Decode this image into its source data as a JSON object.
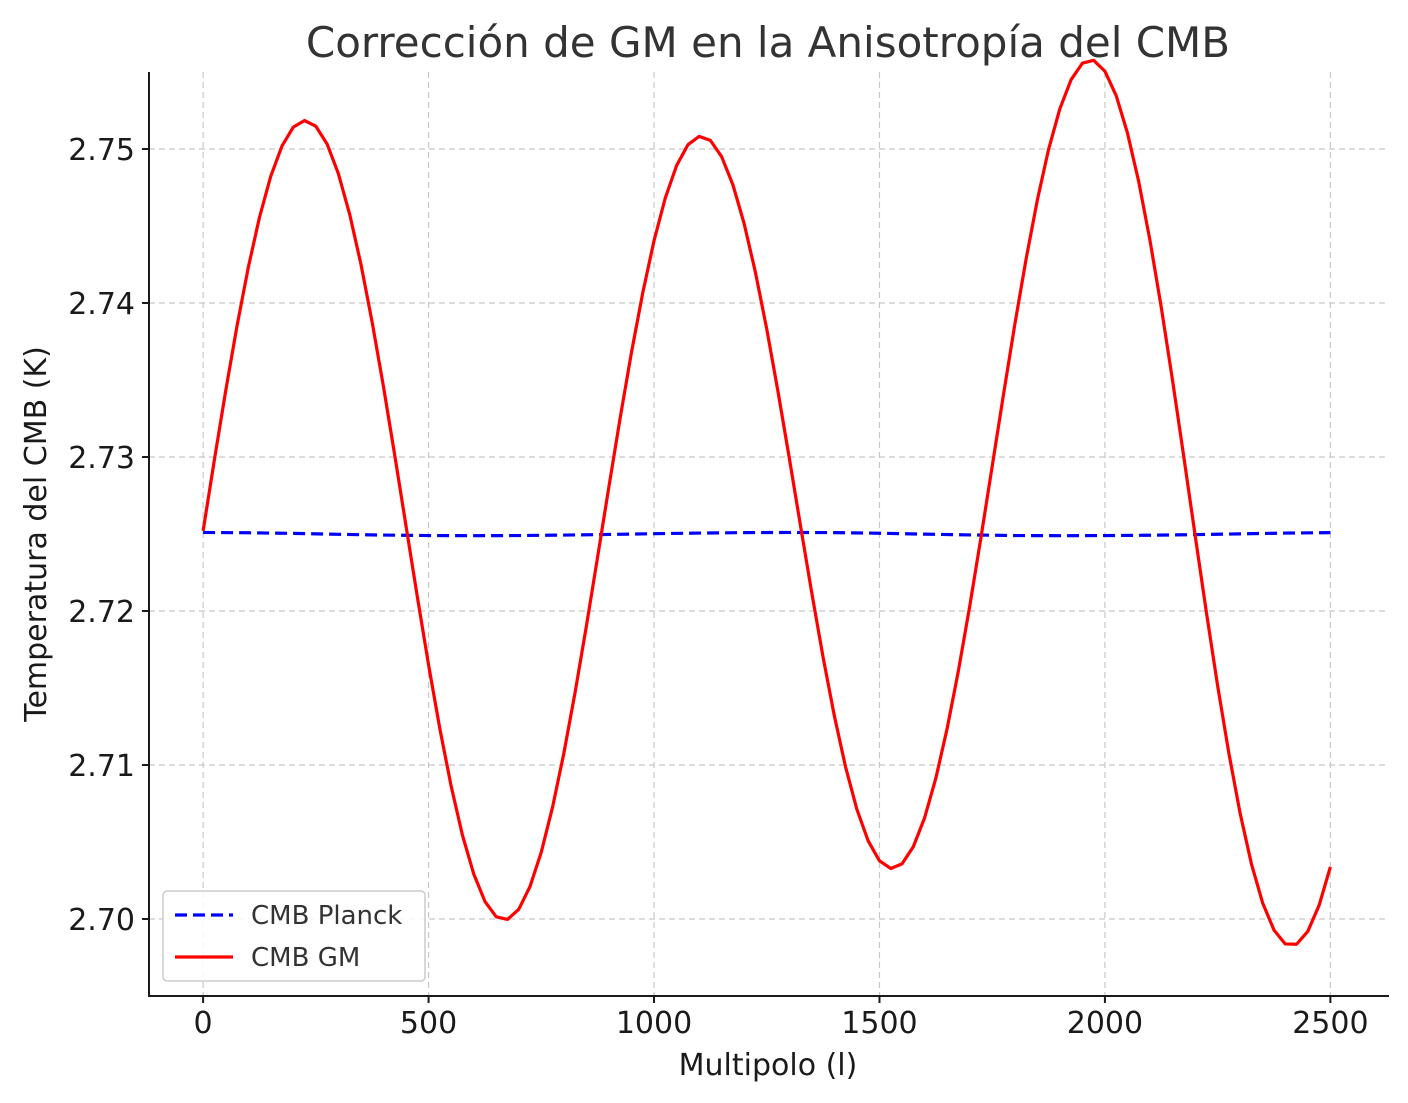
{
  "chart_data": {
    "type": "line",
    "title": "Corrección de GM en la Anisotropía del CMB",
    "xlabel": "Multipolo (l)",
    "ylabel": "Temperatura del CMB (K)",
    "xlim": [
      -120,
      2630
    ],
    "ylim": [
      2.695,
      2.755
    ],
    "xticks": [
      0,
      500,
      1000,
      1500,
      2000,
      2500
    ],
    "xtick_labels": [
      "0",
      "500",
      "1000",
      "1500",
      "2000",
      "2500"
    ],
    "yticks": [
      2.7,
      2.71,
      2.72,
      2.73,
      2.74,
      2.75
    ],
    "ytick_labels": [
      "2.70",
      "2.71",
      "2.72",
      "2.73",
      "2.74",
      "2.75"
    ],
    "grid": true,
    "legend_position": "bottom-left",
    "series": [
      {
        "name": "CMB Planck",
        "color": "#0000ff",
        "style": "dashed",
        "x": [
          0,
          100,
          200,
          300,
          400,
          500,
          600,
          700,
          800,
          900,
          1000,
          1100,
          1200,
          1300,
          1400,
          1500,
          1600,
          1700,
          1800,
          1900,
          2000,
          2100,
          2200,
          2300,
          2400,
          2500
        ],
        "y": [
          2.7251,
          2.72508,
          2.72504,
          2.72498,
          2.72493,
          2.7249,
          2.72489,
          2.7249,
          2.72493,
          2.72497,
          2.72502,
          2.72506,
          2.72509,
          2.7251,
          2.72509,
          2.72505,
          2.72499,
          2.72494,
          2.7249,
          2.72489,
          2.7249,
          2.72492,
          2.72496,
          2.72501,
          2.72506,
          2.72509
        ]
      },
      {
        "name": "CMB GM",
        "color": "#ff0000",
        "style": "solid",
        "x": [
          0,
          25,
          50,
          75,
          100,
          125,
          150,
          175,
          200,
          225,
          250,
          275,
          300,
          325,
          350,
          375,
          400,
          425,
          450,
          475,
          500,
          525,
          550,
          575,
          600,
          625,
          650,
          675,
          700,
          725,
          750,
          775,
          800,
          825,
          850,
          875,
          900,
          925,
          950,
          975,
          1000,
          1025,
          1050,
          1075,
          1100,
          1125,
          1150,
          1175,
          1200,
          1225,
          1250,
          1275,
          1300,
          1325,
          1350,
          1375,
          1400,
          1425,
          1450,
          1475,
          1500,
          1525,
          1550,
          1575,
          1600,
          1625,
          1650,
          1675,
          1700,
          1725,
          1750,
          1775,
          1800,
          1825,
          1850,
          1875,
          1900,
          1925,
          1950,
          1975,
          2000,
          2025,
          2050,
          2075,
          2100,
          2125,
          2150,
          2175,
          2200,
          2225,
          2250,
          2275,
          2300,
          2325,
          2350,
          2375,
          2400,
          2425,
          2450,
          2475,
          2500
        ],
        "y": [
          2.7252,
          2.72981,
          2.73428,
          2.73848,
          2.74228,
          2.74556,
          2.74823,
          2.7502,
          2.75142,
          2.75185,
          2.75148,
          2.75032,
          2.7484,
          2.74577,
          2.74252,
          2.73874,
          2.73457,
          2.73011,
          2.72552,
          2.72094,
          2.7165,
          2.71236,
          2.70864,
          2.70546,
          2.70294,
          2.70114,
          2.70014,
          2.69997,
          2.70063,
          2.70211,
          2.70434,
          2.70726,
          2.71076,
          2.71472,
          2.71902,
          2.72352,
          2.72808,
          2.73255,
          2.73679,
          2.74066,
          2.74404,
          2.74682,
          2.74892,
          2.75027,
          2.75082,
          2.75056,
          2.7495,
          2.74767,
          2.74514,
          2.74198,
          2.73831,
          2.73424,
          2.72993,
          2.72551,
          2.72115,
          2.71699,
          2.71318,
          2.70985,
          2.70711,
          2.70507,
          2.70378,
          2.70328,
          2.70358,
          2.70469,
          2.70656,
          2.70914,
          2.71236,
          2.71611,
          2.72028,
          2.72476,
          2.7294,
          2.73405,
          2.73858,
          2.74283,
          2.74667,
          2.74997,
          2.75261,
          2.7545,
          2.75557,
          2.75576,
          2.75505,
          2.75346,
          2.75104,
          2.74787,
          2.74405,
          2.73971,
          2.73497,
          2.72999,
          2.72492,
          2.71992,
          2.71514,
          2.71074,
          2.70684,
          2.70357,
          2.70102,
          2.69928,
          2.69838,
          2.69836,
          2.6992,
          2.70089,
          2.70338
        ]
      }
    ]
  }
}
